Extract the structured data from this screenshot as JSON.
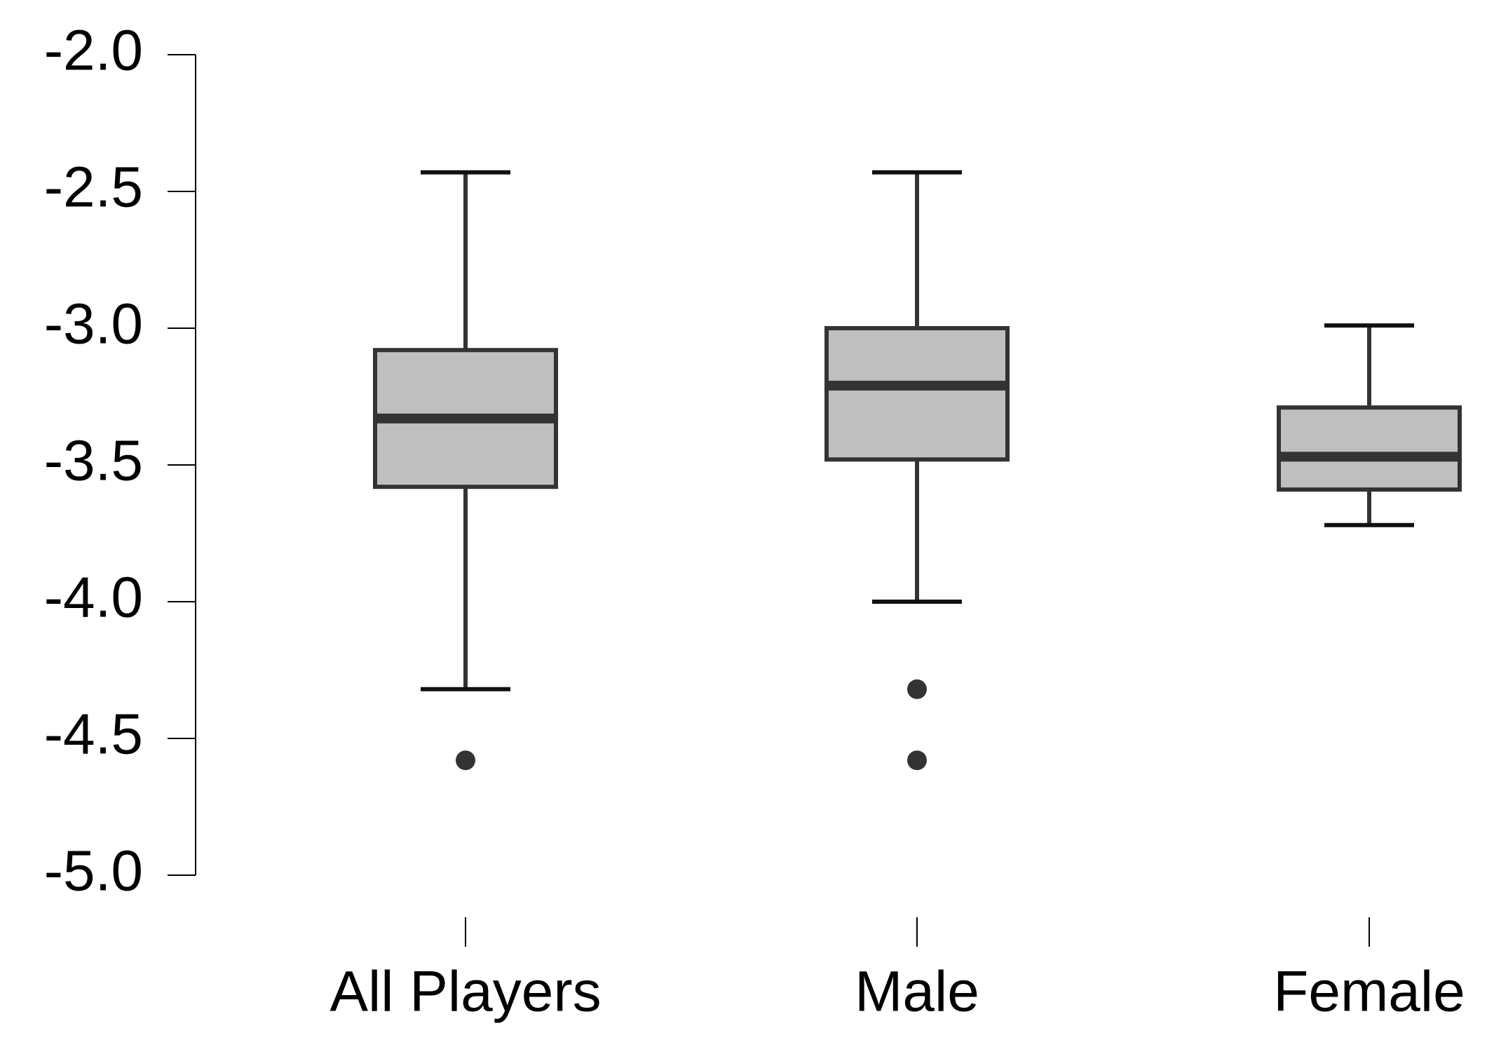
{
  "chart_data": {
    "type": "box",
    "categories": [
      "All Players",
      "Male",
      "Female"
    ],
    "boxes": [
      {
        "whislo": -4.32,
        "q1": -3.58,
        "med": -3.33,
        "q3": -3.08,
        "whishi": -2.43,
        "fliers": [
          -4.58
        ]
      },
      {
        "whislo": -4.0,
        "q1": -3.48,
        "med": -3.21,
        "q3": -3.0,
        "whishi": -2.43,
        "fliers": [
          -4.32,
          -4.58
        ]
      },
      {
        "whislo": -3.72,
        "q1": -3.59,
        "med": -3.47,
        "q3": -3.29,
        "whishi": -2.99,
        "fliers": []
      }
    ],
    "fill": "#bfbfbf",
    "edge_color": "#333333",
    "ylim": [
      -5.0,
      -2.0
    ],
    "yticks": [
      {
        "value": -5.0,
        "label": "-5.0"
      },
      {
        "value": -4.5,
        "label": "-4.5"
      },
      {
        "value": -4.0,
        "label": "-4.0"
      },
      {
        "value": -3.5,
        "label": "-3.5"
      },
      {
        "value": -3.0,
        "label": "-3.0"
      },
      {
        "value": -2.5,
        "label": "-2.5"
      },
      {
        "value": -2.0,
        "label": "-2.0"
      }
    ],
    "grid": false
  }
}
